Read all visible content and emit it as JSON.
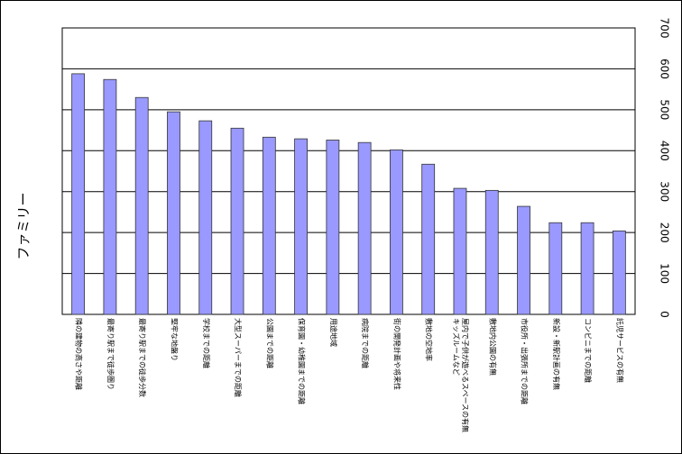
{
  "chart_data": {
    "type": "bar",
    "y_label": "ファミリー",
    "categories": [
      "隣の建物の高さや距離",
      "最寄り駅まで徒歩圏り",
      "最寄り駅までの徒歩分数",
      "堅牢な地盤り",
      "学校までの距離",
      "大型スーパーまでの距離",
      "公園までの距離",
      "保育園・幼稚園までの距離",
      "用途地域",
      "病院までの距離",
      "街の開発計画や将来性",
      "敷地の空地率",
      "キッズルームなど\n屋内で子供が遊べるスペースの有無",
      "敷地内公園の有無",
      "市役所・出張所までの距離",
      "新設・新駅計画の有無",
      "コンビニまでの距離",
      "託児サービスの有無"
    ],
    "values": [
      588,
      574,
      530,
      495,
      473,
      455,
      433,
      429,
      426,
      420,
      402,
      367,
      308,
      303,
      264,
      224,
      224,
      204
    ],
    "color": "#9999ff",
    "ylim": [
      0,
      700
    ],
    "yticks": [
      0,
      100,
      200,
      300,
      400,
      500,
      600,
      700
    ],
    "grid": true
  }
}
